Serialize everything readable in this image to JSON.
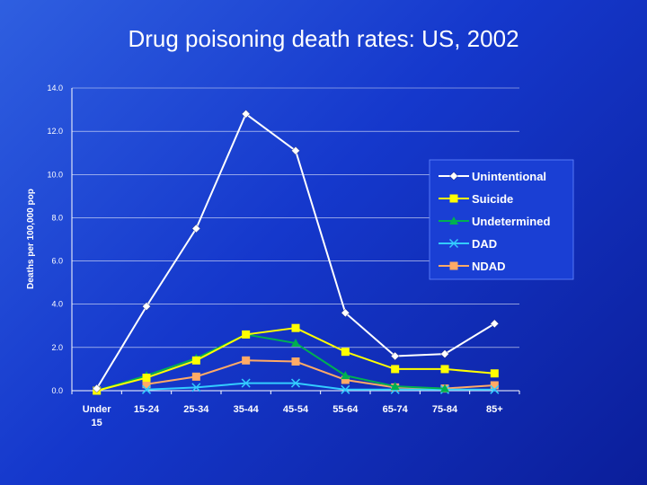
{
  "slide": {
    "title": "Drug poisoning death rates: US, 2002"
  },
  "chart_data": {
    "type": "line",
    "title": "Drug poisoning death rates: US, 2002",
    "xlabel": "",
    "ylabel": "Deaths per 100,000 pop",
    "ylim": [
      0,
      14
    ],
    "y_ticks": [
      "0.0",
      "2.0",
      "4.0",
      "6.0",
      "8.0",
      "10.0",
      "12.0",
      "14.0"
    ],
    "categories": [
      "Under 15",
      "15-24",
      "25-34",
      "35-44",
      "45-54",
      "55-64",
      "65-74",
      "75-84",
      "85+"
    ],
    "grid": "horizontal",
    "legend": "right",
    "series": [
      {
        "name": "Unintentional",
        "color": "#ffffff",
        "marker": "diamond",
        "values": [
          0.1,
          3.9,
          7.5,
          12.8,
          11.1,
          3.6,
          1.6,
          1.7,
          3.1
        ]
      },
      {
        "name": "Suicide",
        "color": "#ffff00",
        "marker": "square",
        "values": [
          0.0,
          0.6,
          1.4,
          2.6,
          2.9,
          1.8,
          1.0,
          1.0,
          0.8
        ]
      },
      {
        "name": "Undetermined",
        "color": "#00b050",
        "marker": "triangle",
        "values": [
          0.0,
          0.7,
          1.5,
          2.6,
          2.2,
          0.7,
          0.2,
          0.1,
          null
        ]
      },
      {
        "name": "DAD",
        "color": "#33ccff",
        "marker": "x",
        "values": [
          null,
          0.05,
          0.15,
          0.35,
          0.35,
          0.05,
          0.05,
          0.05,
          0.05
        ]
      },
      {
        "name": "NDAD",
        "color": "#ffaa66",
        "marker": "square",
        "values": [
          null,
          0.3,
          0.65,
          1.4,
          1.35,
          0.5,
          0.15,
          0.1,
          0.25
        ]
      }
    ]
  }
}
